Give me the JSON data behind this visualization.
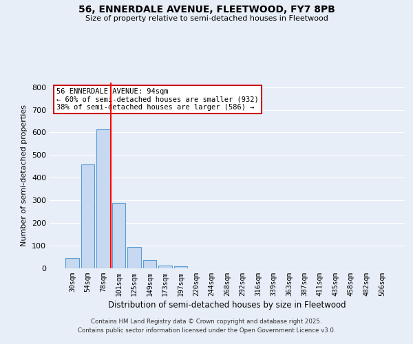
{
  "title": "56, ENNERDALE AVENUE, FLEETWOOD, FY7 8PB",
  "subtitle": "Size of property relative to semi-detached houses in Fleetwood",
  "xlabel": "Distribution of semi-detached houses by size in Fleetwood",
  "ylabel": "Number of semi-detached properties",
  "bar_labels": [
    "30sqm",
    "54sqm",
    "78sqm",
    "101sqm",
    "125sqm",
    "149sqm",
    "173sqm",
    "197sqm",
    "220sqm",
    "244sqm",
    "268sqm",
    "292sqm",
    "316sqm",
    "339sqm",
    "363sqm",
    "387sqm",
    "411sqm",
    "435sqm",
    "458sqm",
    "482sqm",
    "506sqm"
  ],
  "bar_values": [
    46,
    460,
    615,
    290,
    95,
    35,
    12,
    10,
    0,
    0,
    0,
    0,
    0,
    0,
    0,
    0,
    0,
    0,
    0,
    0,
    0
  ],
  "bar_color": "#c6d9f0",
  "bar_edge_color": "#5b9bd5",
  "vline_x": 2.5,
  "vline_color": "red",
  "annotation_title": "56 ENNERDALE AVENUE: 94sqm",
  "annotation_line1": "← 60% of semi-detached houses are smaller (932)",
  "annotation_line2": "38% of semi-detached houses are larger (586) →",
  "annotation_box_color": "white",
  "annotation_box_edge": "#cc0000",
  "ylim": [
    0,
    820
  ],
  "yticks": [
    0,
    100,
    200,
    300,
    400,
    500,
    600,
    700,
    800
  ],
  "background_color": "#e8eef7",
  "footer_line1": "Contains HM Land Registry data © Crown copyright and database right 2025.",
  "footer_line2": "Contains public sector information licensed under the Open Government Licence v3.0."
}
